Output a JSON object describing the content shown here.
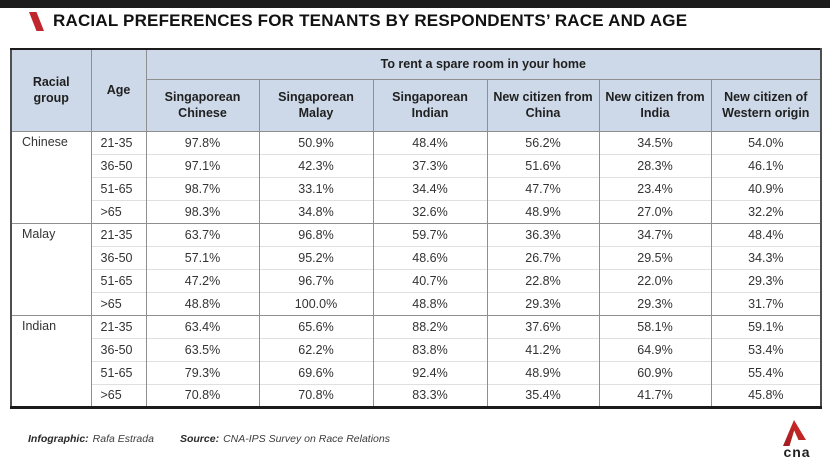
{
  "chart_data": {
    "type": "table",
    "title": "RACIAL PREFERENCES FOR TENANTS BY RESPONDENTS’ RACE AND AGE",
    "span_header": "To rent a spare room in your home",
    "row_dims": [
      "Racial group",
      "Age"
    ],
    "columns": [
      "Singaporean Chinese",
      "Singaporean Malay",
      "Singaporean Indian",
      "New citizen from China",
      "New citizen from India",
      "New citizen of Western origin"
    ],
    "unit": "%",
    "groups": [
      {
        "name": "Chinese",
        "rows": [
          {
            "age": "21-35",
            "values": [
              97.8,
              50.9,
              48.4,
              56.2,
              34.5,
              54.0
            ]
          },
          {
            "age": "36-50",
            "values": [
              97.1,
              42.3,
              37.3,
              51.6,
              28.3,
              46.1
            ]
          },
          {
            "age": "51-65",
            "values": [
              98.7,
              33.1,
              34.4,
              47.7,
              23.4,
              40.9
            ]
          },
          {
            "age": ">65",
            "values": [
              98.3,
              34.8,
              32.6,
              48.9,
              27.0,
              32.2
            ]
          }
        ]
      },
      {
        "name": "Malay",
        "rows": [
          {
            "age": "21-35",
            "values": [
              63.7,
              96.8,
              59.7,
              36.3,
              34.7,
              48.4
            ]
          },
          {
            "age": "36-50",
            "values": [
              57.1,
              95.2,
              48.6,
              26.7,
              29.5,
              34.3
            ]
          },
          {
            "age": "51-65",
            "values": [
              47.2,
              96.7,
              40.7,
              22.8,
              22.0,
              29.3
            ]
          },
          {
            "age": ">65",
            "values": [
              48.8,
              100.0,
              48.8,
              29.3,
              29.3,
              31.7
            ]
          }
        ]
      },
      {
        "name": "Indian",
        "rows": [
          {
            "age": "21-35",
            "values": [
              63.4,
              65.6,
              88.2,
              37.6,
              58.1,
              59.1
            ]
          },
          {
            "age": "36-50",
            "values": [
              63.5,
              62.2,
              83.8,
              41.2,
              64.9,
              53.4
            ]
          },
          {
            "age": "51-65",
            "values": [
              79.3,
              69.6,
              92.4,
              48.9,
              60.9,
              55.4
            ]
          },
          {
            "age": ">65",
            "values": [
              70.8,
              70.8,
              83.3,
              35.4,
              41.7,
              45.8
            ]
          }
        ]
      }
    ]
  },
  "footer": {
    "infographic_label": "Infographic:",
    "infographic_value": "Rafa Estrada",
    "source_label": "Source:",
    "source_value": "CNA-IPS Survey on Race Relations",
    "logo_text": "cna"
  },
  "colors": {
    "top_bar": "#1c1c1c",
    "accent_red": "#c0272d",
    "header_bg": "#cdd9e8",
    "border_dark": "#1b1b1b",
    "border_gray": "#8f8f8f",
    "border_light": "#e0e0e0"
  }
}
